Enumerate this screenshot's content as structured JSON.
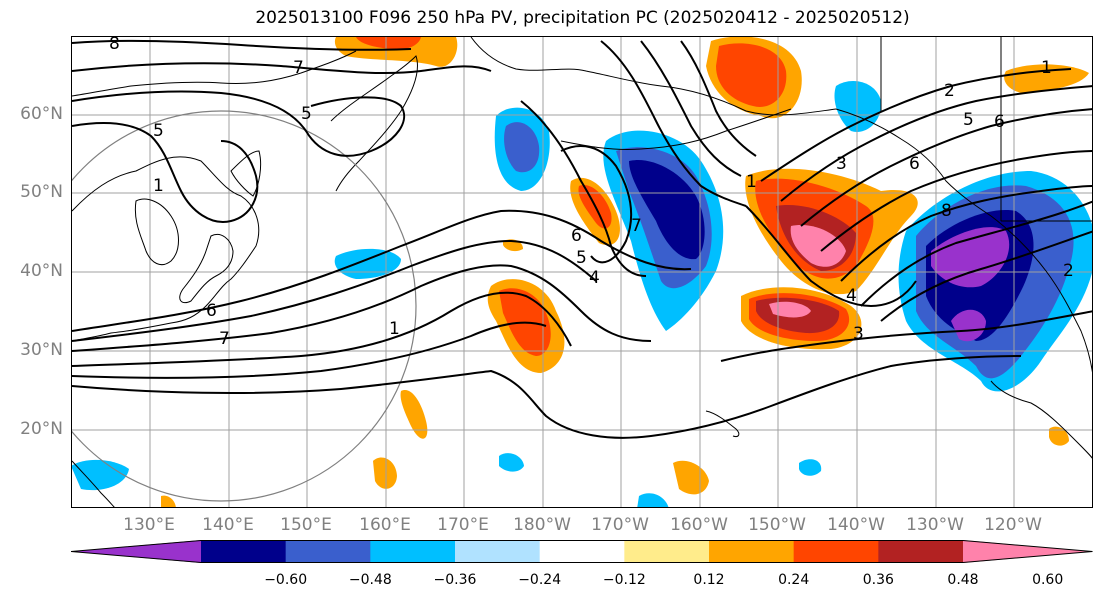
{
  "title": "2025013100 F096 250 hPa PV, precipitation PC (2025020412 - 2025020512)",
  "lat_labels": [
    "60°N",
    "50°N",
    "40°N",
    "30°N",
    "20°N"
  ],
  "lon_labels": [
    "130°E",
    "140°E",
    "150°E",
    "160°E",
    "170°E",
    "180°W",
    "170°W",
    "160°W",
    "150°W",
    "140°W",
    "130°W",
    "120°W"
  ],
  "colorbar": {
    "ticks": [
      "−0.60",
      "−0.48",
      "−0.36",
      "−0.24",
      "−0.12",
      "0.12",
      "0.24",
      "0.36",
      "0.48",
      "0.60"
    ],
    "colors": [
      "#9932cc",
      "#00008b",
      "#3a5fcd",
      "#00bfff",
      "#b0e2ff",
      "#ffffff",
      "#ffec8b",
      "#ffa500",
      "#ff4500",
      "#b22222",
      "#ff82ab"
    ]
  },
  "contour_labels": [
    "8",
    "7",
    "5",
    "6",
    "5",
    "1",
    "6",
    "1",
    "2",
    "7",
    "6",
    "5",
    "4",
    "7",
    "1",
    "3",
    "4",
    "3",
    "2",
    "5",
    "6",
    "8",
    "1"
  ],
  "fill_colors": {
    "purple": "#9932cc",
    "darkblue": "#00008b",
    "blue": "#3a5fcd",
    "cyan": "#00bfff",
    "lightcyan": "#b0e2ff",
    "yellow": "#ffec8b",
    "orange": "#ffa500",
    "redorange": "#ff4500",
    "red": "#b22222",
    "pink": "#ff82ab"
  }
}
